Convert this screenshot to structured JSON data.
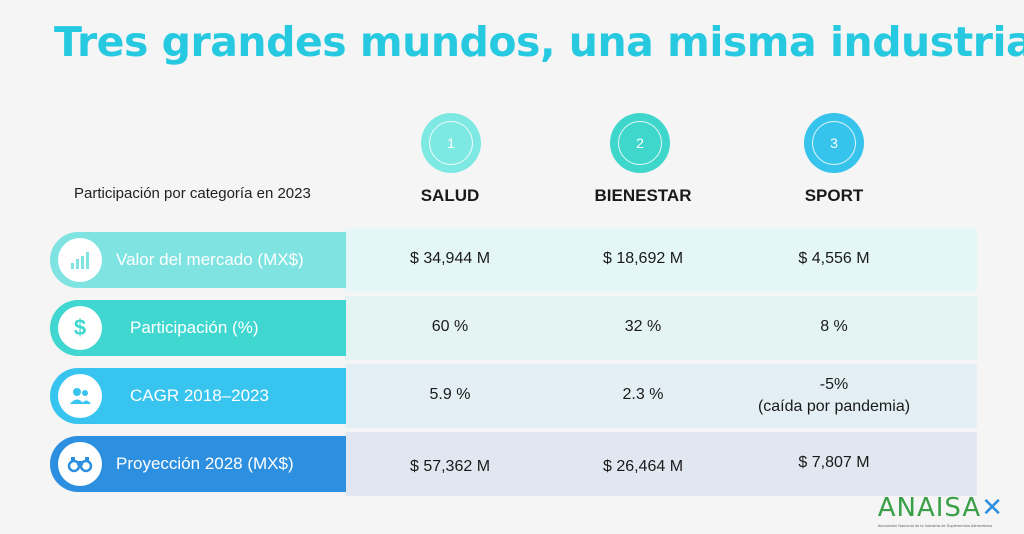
{
  "title": "Tres grandes mundos, una misma industria",
  "subtitle": "Participación por categoría en 2023",
  "columns": [
    {
      "number": "1",
      "label": "SALUD",
      "color": "#7ee8e3"
    },
    {
      "number": "2",
      "label": "BIENESTAR",
      "color": "#3fd6cc"
    },
    {
      "number": "3",
      "label": "SPORT",
      "color": "#36c3ec"
    }
  ],
  "rows": [
    {
      "label": "Valor del mercado (MX$)",
      "icon": "bar-chart-icon",
      "color": "#7fe3e2",
      "values": [
        "$ 34,944 M",
        "$ 18,692 M",
        "$ 4,556 M"
      ]
    },
    {
      "label": "Participación (%)",
      "icon": "dollar-icon",
      "color": "#3fd7cf",
      "values": [
        "60 %",
        "32 %",
        "8 %"
      ]
    },
    {
      "label": "CAGR 2018–2023",
      "icon": "people-icon",
      "color": "#37c4ee",
      "values": [
        "5.9 %",
        "2.3 %",
        "-5%",
        "(caída por pandemia)"
      ]
    },
    {
      "label": "Proyección 2028 (MX$)",
      "icon": "binoculars-icon",
      "color": "#2d8fe0",
      "values": [
        "$ 57,362 M",
        "$ 26,464 M",
        "$ 7,807 M"
      ]
    }
  ],
  "logo": {
    "name": "ANAISA",
    "tagline": "Asociación Nacional de la Industria de Suplementos Alimenticios"
  }
}
